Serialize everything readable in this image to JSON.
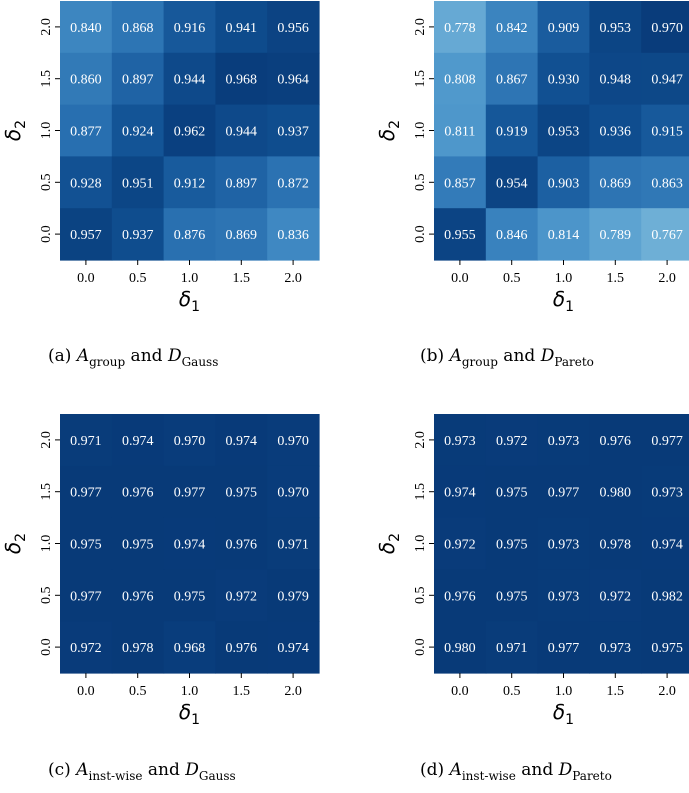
{
  "chart_data": [
    {
      "type": "heatmap",
      "title": "",
      "caption": {
        "label": "(a)",
        "algo": "A",
        "algo_sub": "group",
        "connector": "and",
        "dist": "D",
        "dist_sub": "Gauss"
      },
      "xlabel": {
        "symbol": "δ",
        "sub": "1"
      },
      "ylabel": {
        "symbol": "δ",
        "sub": "2"
      },
      "x_categories": [
        "0.0",
        "0.5",
        "1.0",
        "1.5",
        "2.0"
      ],
      "y_categories": [
        "2.0",
        "1.5",
        "1.0",
        "0.5",
        "0.0"
      ],
      "values": [
        [
          0.84,
          0.868,
          0.916,
          0.941,
          0.956
        ],
        [
          0.86,
          0.897,
          0.944,
          0.968,
          0.964
        ],
        [
          0.877,
          0.924,
          0.962,
          0.944,
          0.937
        ],
        [
          0.928,
          0.951,
          0.912,
          0.897,
          0.872
        ],
        [
          0.957,
          0.937,
          0.876,
          0.869,
          0.836
        ]
      ],
      "colormap": "Blues",
      "grid": false,
      "legend": "none"
    },
    {
      "type": "heatmap",
      "title": "",
      "caption": {
        "label": "(b)",
        "algo": "A",
        "algo_sub": "group",
        "connector": "and",
        "dist": "D",
        "dist_sub": "Pareto"
      },
      "xlabel": {
        "symbol": "δ",
        "sub": "1"
      },
      "ylabel": {
        "symbol": "δ",
        "sub": "2"
      },
      "x_categories": [
        "0.0",
        "0.5",
        "1.0",
        "1.5",
        "2.0"
      ],
      "y_categories": [
        "2.0",
        "1.5",
        "1.0",
        "0.5",
        "0.0"
      ],
      "values": [
        [
          0.778,
          0.842,
          0.909,
          0.953,
          0.97
        ],
        [
          0.808,
          0.867,
          0.93,
          0.948,
          0.947
        ],
        [
          0.811,
          0.919,
          0.953,
          0.936,
          0.915
        ],
        [
          0.857,
          0.954,
          0.903,
          0.869,
          0.863
        ],
        [
          0.955,
          0.846,
          0.814,
          0.789,
          0.767
        ]
      ],
      "colormap": "Blues",
      "grid": false,
      "legend": "none"
    },
    {
      "type": "heatmap",
      "title": "",
      "caption": {
        "label": "(c)",
        "algo": "A",
        "algo_sub": "inst-wise",
        "connector": "and",
        "dist": "D",
        "dist_sub": "Gauss"
      },
      "xlabel": {
        "symbol": "δ",
        "sub": "1"
      },
      "ylabel": {
        "symbol": "δ",
        "sub": "2"
      },
      "x_categories": [
        "0.0",
        "0.5",
        "1.0",
        "1.5",
        "2.0"
      ],
      "y_categories": [
        "2.0",
        "1.5",
        "1.0",
        "0.5",
        "0.0"
      ],
      "values": [
        [
          0.971,
          0.974,
          0.97,
          0.974,
          0.97
        ],
        [
          0.977,
          0.976,
          0.977,
          0.975,
          0.97
        ],
        [
          0.975,
          0.975,
          0.974,
          0.976,
          0.971
        ],
        [
          0.977,
          0.976,
          0.975,
          0.972,
          0.979
        ],
        [
          0.972,
          0.978,
          0.968,
          0.976,
          0.974
        ]
      ],
      "colormap": "Blues",
      "grid": false,
      "legend": "none"
    },
    {
      "type": "heatmap",
      "title": "",
      "caption": {
        "label": "(d)",
        "algo": "A",
        "algo_sub": "inst-wise",
        "connector": "and",
        "dist": "D",
        "dist_sub": "Pareto"
      },
      "xlabel": {
        "symbol": "δ",
        "sub": "1"
      },
      "ylabel": {
        "symbol": "δ",
        "sub": "2"
      },
      "x_categories": [
        "0.0",
        "0.5",
        "1.0",
        "1.5",
        "2.0"
      ],
      "y_categories": [
        "2.0",
        "1.5",
        "1.0",
        "0.5",
        "0.0"
      ],
      "values": [
        [
          0.973,
          0.972,
          0.973,
          0.976,
          0.977
        ],
        [
          0.974,
          0.975,
          0.977,
          0.98,
          0.973
        ],
        [
          0.972,
          0.975,
          0.973,
          0.978,
          0.974
        ],
        [
          0.976,
          0.975,
          0.973,
          0.972,
          0.982
        ],
        [
          0.98,
          0.971,
          0.977,
          0.973,
          0.975
        ]
      ],
      "colormap": "Blues",
      "grid": false,
      "legend": "none"
    }
  ]
}
